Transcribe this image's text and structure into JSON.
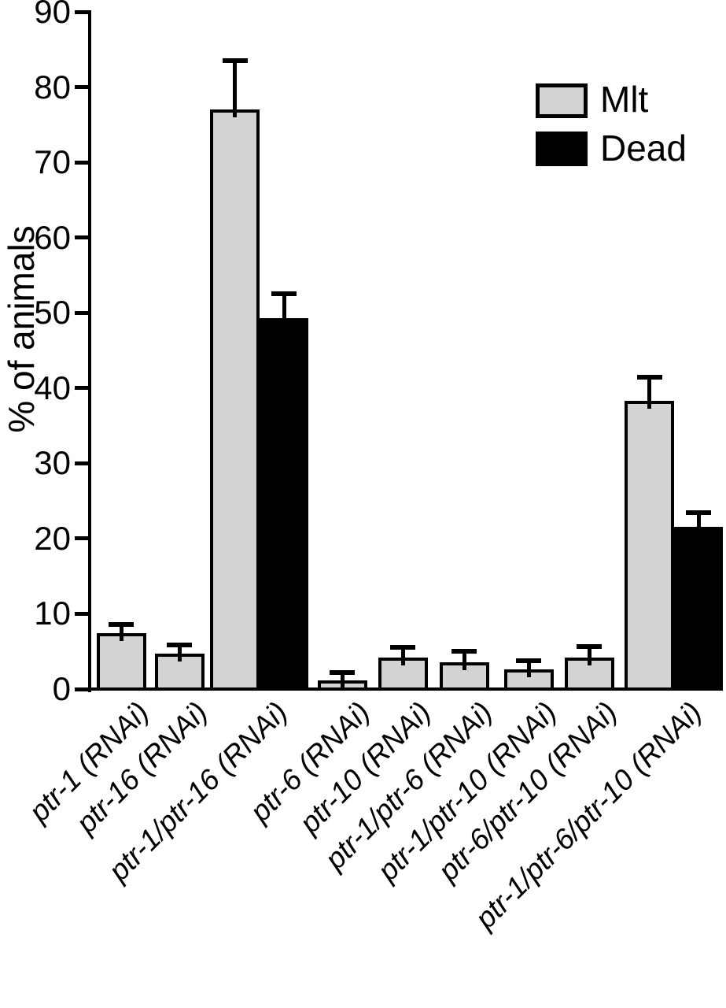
{
  "chart_data": {
    "type": "bar",
    "title": "",
    "ylabel": "% of animals",
    "xlabel": "",
    "ylim": [
      0,
      90
    ],
    "yticks": [
      0,
      10,
      20,
      30,
      40,
      50,
      60,
      70,
      80,
      90
    ],
    "grid": false,
    "legend_position": "top-right",
    "error_bars": "upper caps shown on every bar",
    "categories": [
      "ptr-1 (RNAi)",
      "ptr-16 (RNAi)",
      "ptr-1/ptr-16 (RNAi)",
      "ptr-6 (RNAi)",
      "ptr-10 (RNAi)",
      "ptr-1/ptr-6 (RNAi)",
      "ptr-1/ptr-10 (RNAi)",
      "ptr-6/ptr-10 (RNAi)",
      "ptr-1/ptr-6/ptr-10 (RNAi)"
    ],
    "series": [
      {
        "name": "Mlt",
        "color": "#d3d3d3",
        "values": [
          7.4,
          4.7,
          77,
          1.2,
          4.2,
          3.6,
          2.6,
          4.2,
          38.3
        ],
        "errors": [
          1.2,
          1.2,
          6.5,
          1.0,
          1.3,
          1.4,
          1.2,
          1.4,
          3.1
        ]
      },
      {
        "name": "Dead",
        "color": "#000000",
        "values": [
          null,
          null,
          49.3,
          null,
          null,
          null,
          null,
          null,
          21.6
        ],
        "errors": [
          null,
          null,
          3.2,
          null,
          null,
          null,
          null,
          null,
          1.8
        ]
      }
    ]
  },
  "colors": {
    "mlt_fill": "#d3d3d3",
    "dead_fill": "#000000",
    "stroke": "#000000",
    "background": "#ffffff"
  }
}
